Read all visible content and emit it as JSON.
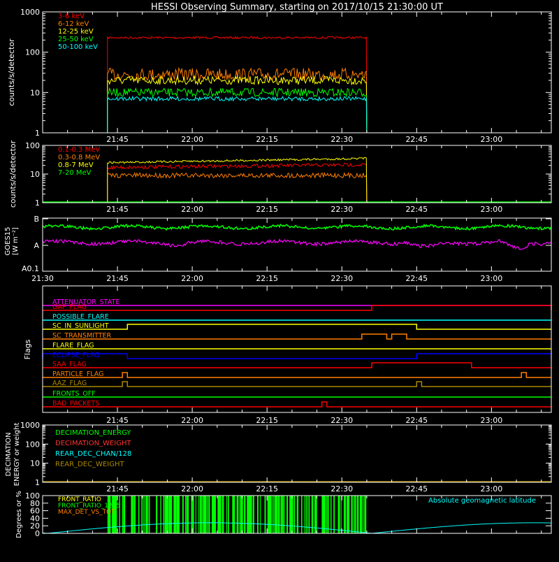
{
  "title": "HESSI Observing Summary, starting on 2017/10/15 21:30:00 UT",
  "time_ticks": [
    "21:45",
    "22:00",
    "22:15",
    "22:30",
    "22:45",
    "23:00"
  ],
  "goes_time_ticks": [
    "21:30",
    "21:45",
    "22:00",
    "22:15",
    "22:30",
    "22:45",
    "23:00"
  ],
  "colors": {
    "red": "#ff0000",
    "orange": "#ff7f00",
    "yellow": "#ffff00",
    "green": "#00ff00",
    "cyan": "#00ffff",
    "magenta": "#ff00ff",
    "blue": "#0000ff",
    "darkyellow": "#aa8800",
    "axis": "#ffffff",
    "bg": "#000000"
  },
  "panels": {
    "lo": {
      "ylabel": "counts/s/detector",
      "yticks": [
        "1",
        "10",
        "100",
        "1000"
      ],
      "legend": [
        "3-6 keV",
        "6-12 keV",
        "12-25 keV",
        "25-50 keV",
        "50-100 keV"
      ]
    },
    "hi": {
      "ylabel": "counts/s/detector",
      "yticks": [
        "1",
        "10",
        "100"
      ],
      "legend": [
        "0.1-0.3 MeV",
        "0.3-0.8 MeV",
        "0.8-7 MeV",
        "7-20 MeV"
      ]
    },
    "goes": {
      "ylabel": "GOES15",
      "ylabel2": "[W m⁻²]",
      "yticks": [
        "B",
        "A",
        "A0.1"
      ]
    },
    "flags": {
      "ylabel": "Flags",
      "items": [
        "ATTENUATOR_STATE",
        "GAP_FLAG",
        "POSSIBLE_FLARE",
        "SC_IN_SUNLIGHT",
        "SC_TRANSMITTER",
        "FLARE_FLAG",
        "ECLIPSE_FLAG",
        "SAA_FLAG",
        "PARTICLE_FLAG",
        "AAZ_FLAG",
        "FRONTS_OFF",
        "BAD_PACKETS"
      ]
    },
    "decim": {
      "ylabel": "DECIMATION",
      "ylabel2": "ENERGY or weight",
      "yticks": [
        "1",
        "10",
        "100",
        "1000"
      ],
      "legend": [
        "DECIMATION_ENERGY",
        "DECIMATION_WEIGHT",
        "REAR_DEC_CHAN/128",
        "REAR_DEC_WEIGHT"
      ]
    },
    "front": {
      "ylabel": "Degrees or %",
      "yticks": [
        "0",
        "20",
        "40",
        "60",
        "80",
        "100"
      ],
      "legend": [
        "FRONT_RATIO",
        "FRONT_RATIO_1225",
        "MAX_DET_VS_TOT"
      ],
      "right_label": "Absolute geomagnetic latitude"
    }
  },
  "chart_data": [
    {
      "type": "line",
      "title": "HESSI Observing Summary, starting on 2017/10/15 21:30:00 UT",
      "ylabel": "counts/s/detector",
      "yscale": "log",
      "ylim": [
        1,
        1000
      ],
      "xlim": [
        "21:30",
        "23:12"
      ],
      "data_interval": [
        "21:43",
        "22:35"
      ],
      "series": [
        {
          "name": "3-6 keV",
          "level": 230,
          "color": "#ff0000"
        },
        {
          "name": "6-12 keV",
          "level": 28,
          "color": "#ff7f00"
        },
        {
          "name": "12-25 keV",
          "level": 20,
          "color": "#ffff00"
        },
        {
          "name": "25-50 keV",
          "level": 10,
          "color": "#00ff00"
        },
        {
          "name": "50-100 keV",
          "level": 7,
          "color": "#00ffff"
        }
      ]
    },
    {
      "type": "line",
      "ylabel": "counts/s/detector",
      "yscale": "log",
      "ylim": [
        1,
        100
      ],
      "xlim": [
        "21:30",
        "23:12"
      ],
      "data_interval": [
        "21:43",
        "22:35"
      ],
      "series": [
        {
          "name": "0.1-0.3 MeV",
          "level": 17,
          "color": "#ff0000"
        },
        {
          "name": "0.3-0.8 MeV",
          "level": 9,
          "color": "#ff7f00"
        },
        {
          "name": "0.8-7 MeV",
          "level": 25,
          "color": "#ffff00"
        },
        {
          "name": "7-20 MeV",
          "level": 1,
          "color": "#00ff00"
        }
      ]
    },
    {
      "type": "line",
      "ylabel": "GOES15 [W m⁻²]",
      "yscale": "log",
      "ylim": [
        "A0.1",
        "B"
      ],
      "xlim": [
        "21:30",
        "23:12"
      ],
      "series": [
        {
          "level": "between A and B",
          "color": "#00ff00"
        },
        {
          "level": "about A",
          "color": "#ff00ff"
        }
      ]
    },
    {
      "type": "line",
      "ylabel": "Flags",
      "flags": [
        {
          "name": "ATTENUATOR_STATE",
          "color": "#ff00ff",
          "on": []
        },
        {
          "name": "GAP_FLAG",
          "color": "#ff0000",
          "on": [
            [
              "22:36",
              "23:12"
            ]
          ]
        },
        {
          "name": "POSSIBLE_FLARE",
          "color": "#00ffff",
          "on": []
        },
        {
          "name": "SC_IN_SUNLIGHT",
          "color": "#ffff00",
          "on": [
            [
              "21:47",
              "22:45"
            ]
          ]
        },
        {
          "name": "SC_TRANSMITTER",
          "color": "#ff7f00",
          "on": [
            [
              "22:34",
              "22:39"
            ],
            [
              "22:40",
              "22:43"
            ]
          ]
        },
        {
          "name": "FLARE_FLAG",
          "color": "#ffff00",
          "on": []
        },
        {
          "name": "ECLIPSE_FLAG",
          "color": "#0000ff",
          "on": [
            [
              "21:30",
              "21:47"
            ],
            [
              "22:45",
              "23:12"
            ]
          ]
        },
        {
          "name": "SAA_FLAG",
          "color": "#ff0000",
          "on": [
            [
              "22:36",
              "22:56"
            ]
          ]
        },
        {
          "name": "PARTICLE_FLAG",
          "color": "#ff7f00",
          "on": [
            [
              "21:46",
              "21:47"
            ],
            [
              "23:06",
              "23:07"
            ]
          ]
        },
        {
          "name": "AAZ_FLAG",
          "color": "#aa8800",
          "on": [
            [
              "21:46",
              "21:47"
            ],
            [
              "22:45",
              "22:46"
            ]
          ]
        },
        {
          "name": "FRONTS_OFF",
          "color": "#00ff00",
          "on": []
        },
        {
          "name": "BAD_PACKETS",
          "color": "#ff0000",
          "on": [
            [
              "22:26",
              "22:27"
            ]
          ]
        }
      ]
    },
    {
      "type": "line",
      "ylabel": "DECIMATION ENERGY or weight",
      "yscale": "log",
      "ylim": [
        1,
        1000
      ],
      "xlim": [
        "21:30",
        "23:12"
      ],
      "series": [
        {
          "name": "DECIMATION_ENERGY",
          "color": "#00ff00"
        },
        {
          "name": "DECIMATION_WEIGHT",
          "color": "#ff3333"
        },
        {
          "name": "REAR_DEC_CHAN/128",
          "color": "#00ffff"
        },
        {
          "name": "REAR_DEC_WEIGHT",
          "color": "#aa8800"
        }
      ]
    },
    {
      "type": "line",
      "ylabel": "Degrees or %",
      "ylim": [
        0,
        100
      ],
      "xlim": [
        "21:30",
        "23:12"
      ],
      "series": [
        {
          "name": "FRONT_RATIO",
          "color": "#ffff00"
        },
        {
          "name": "FRONT_RATIO_1225",
          "color": "#00ff00",
          "range": [
            "21:43",
            "22:35"
          ],
          "level": 100
        },
        {
          "name": "MAX_DET_VS_TOT",
          "color": "#ff7f00"
        },
        {
          "name": "Absolute geomagnetic latitude",
          "color": "#00ffff",
          "min": 0,
          "max": 28
        }
      ]
    }
  ]
}
